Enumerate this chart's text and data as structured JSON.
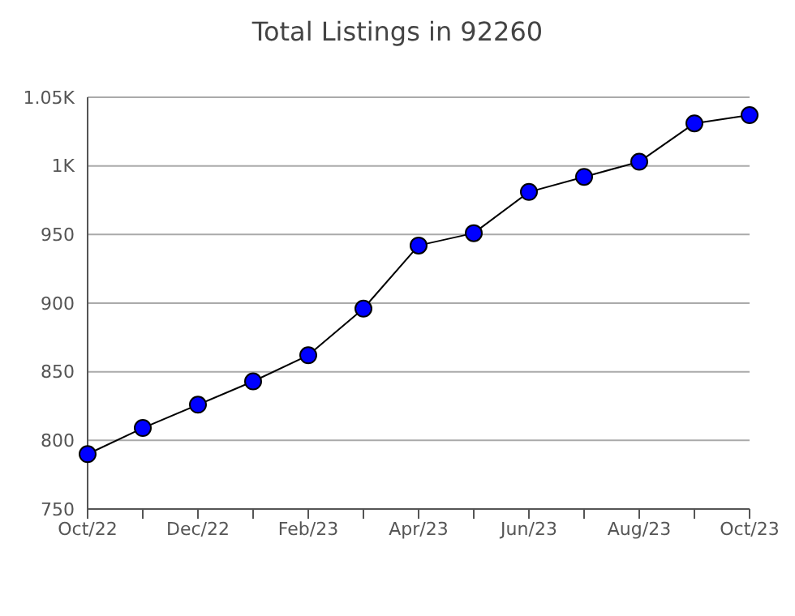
{
  "chart_data": {
    "type": "line",
    "title": "Total Listings in 92260",
    "categories": [
      "Oct/22",
      null,
      "Dec/22",
      null,
      "Feb/23",
      null,
      "Apr/23",
      null,
      "Jun/23",
      null,
      "Aug/23",
      null,
      "Oct/23"
    ],
    "series": [
      {
        "color": "#0000ff",
        "values": [
          790,
          809,
          826,
          843,
          862,
          896,
          942,
          951,
          981,
          992,
          1003,
          1031,
          1037
        ]
      }
    ],
    "ylim": [
      750,
      1050
    ],
    "yticks": [
      750,
      800,
      850,
      900,
      950,
      {
        "value": 1000,
        "label": "1K"
      },
      {
        "value": 1050,
        "label": "1.05K"
      }
    ],
    "grid": "y",
    "marker": "circle",
    "line_style": "solid"
  }
}
